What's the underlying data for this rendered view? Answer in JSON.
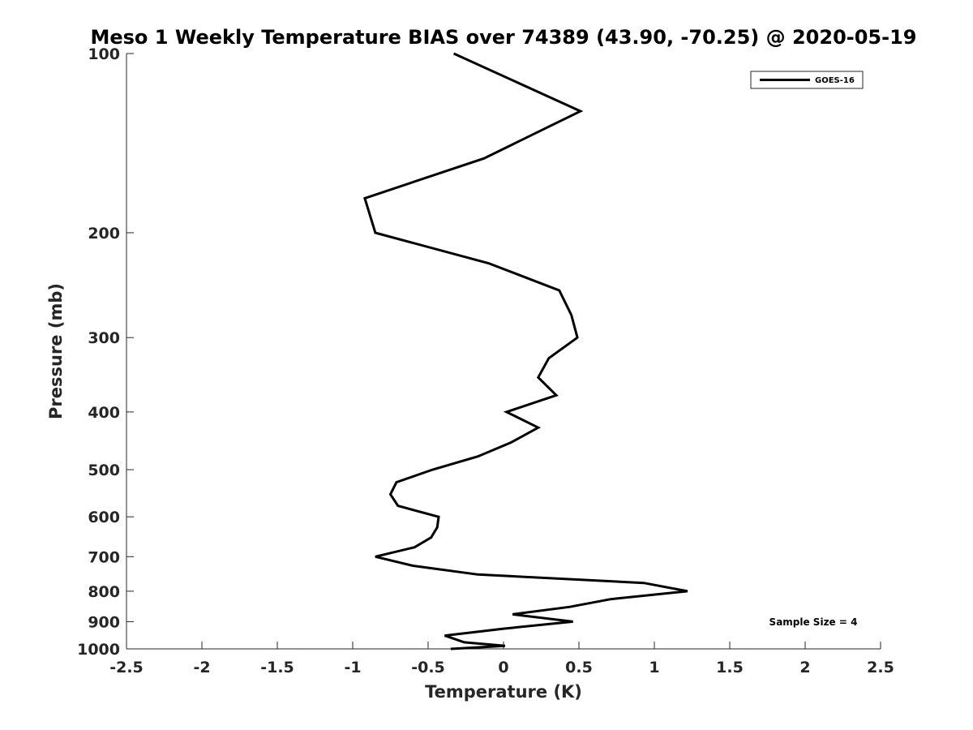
{
  "chart_data": {
    "type": "line",
    "title": "Meso 1 Weekly Temperature BIAS over 74389 (43.90, -70.25) @ 2020-05-19",
    "xlabel": "Temperature (K)",
    "ylabel": "Pressure (mb)",
    "xlim": [
      -2.5,
      2.5
    ],
    "ylim": [
      100,
      1000
    ],
    "yscale": "log",
    "y_reversed": true,
    "xticks": [
      "-2.5",
      "-2",
      "-1.5",
      "-1",
      "-0.5",
      "0",
      "0.5",
      "1",
      "1.5",
      "2",
      "2.5"
    ],
    "yticks": [
      "100",
      "200",
      "300",
      "400",
      "500",
      "600",
      "700",
      "800",
      "900",
      "1000"
    ],
    "grid": false,
    "legend_position": "top-right",
    "annotation": "Sample Size = 4",
    "series": [
      {
        "name": "GOES-16",
        "color": "#000000",
        "points": [
          {
            "p": 1000,
            "t": -0.35
          },
          {
            "p": 988,
            "t": 0.01
          },
          {
            "p": 975,
            "t": -0.26
          },
          {
            "p": 950,
            "t": -0.39
          },
          {
            "p": 925,
            "t": 0.0
          },
          {
            "p": 900,
            "t": 0.46
          },
          {
            "p": 875,
            "t": 0.06
          },
          {
            "p": 850,
            "t": 0.44
          },
          {
            "p": 825,
            "t": 0.71
          },
          {
            "p": 800,
            "t": 1.22
          },
          {
            "p": 775,
            "t": 0.93
          },
          {
            "p": 750,
            "t": -0.17
          },
          {
            "p": 725,
            "t": -0.6
          },
          {
            "p": 700,
            "t": -0.85
          },
          {
            "p": 675,
            "t": -0.59
          },
          {
            "p": 650,
            "t": -0.48
          },
          {
            "p": 625,
            "t": -0.44
          },
          {
            "p": 600,
            "t": -0.43
          },
          {
            "p": 575,
            "t": -0.7
          },
          {
            "p": 550,
            "t": -0.75
          },
          {
            "p": 525,
            "t": -0.71
          },
          {
            "p": 500,
            "t": -0.47
          },
          {
            "p": 475,
            "t": -0.17
          },
          {
            "p": 450,
            "t": 0.05
          },
          {
            "p": 425,
            "t": 0.23
          },
          {
            "p": 400,
            "t": 0.02
          },
          {
            "p": 375,
            "t": 0.35
          },
          {
            "p": 350,
            "t": 0.23
          },
          {
            "p": 325,
            "t": 0.3
          },
          {
            "p": 300,
            "t": 0.49
          },
          {
            "p": 275,
            "t": 0.45
          },
          {
            "p": 250,
            "t": 0.37
          },
          {
            "p": 225,
            "t": -0.1
          },
          {
            "p": 200,
            "t": -0.85
          },
          {
            "p": 175,
            "t": -0.92
          },
          {
            "p": 150,
            "t": -0.13
          },
          {
            "p": 125,
            "t": 0.51
          },
          {
            "p": 100,
            "t": -0.33
          }
        ]
      }
    ]
  }
}
